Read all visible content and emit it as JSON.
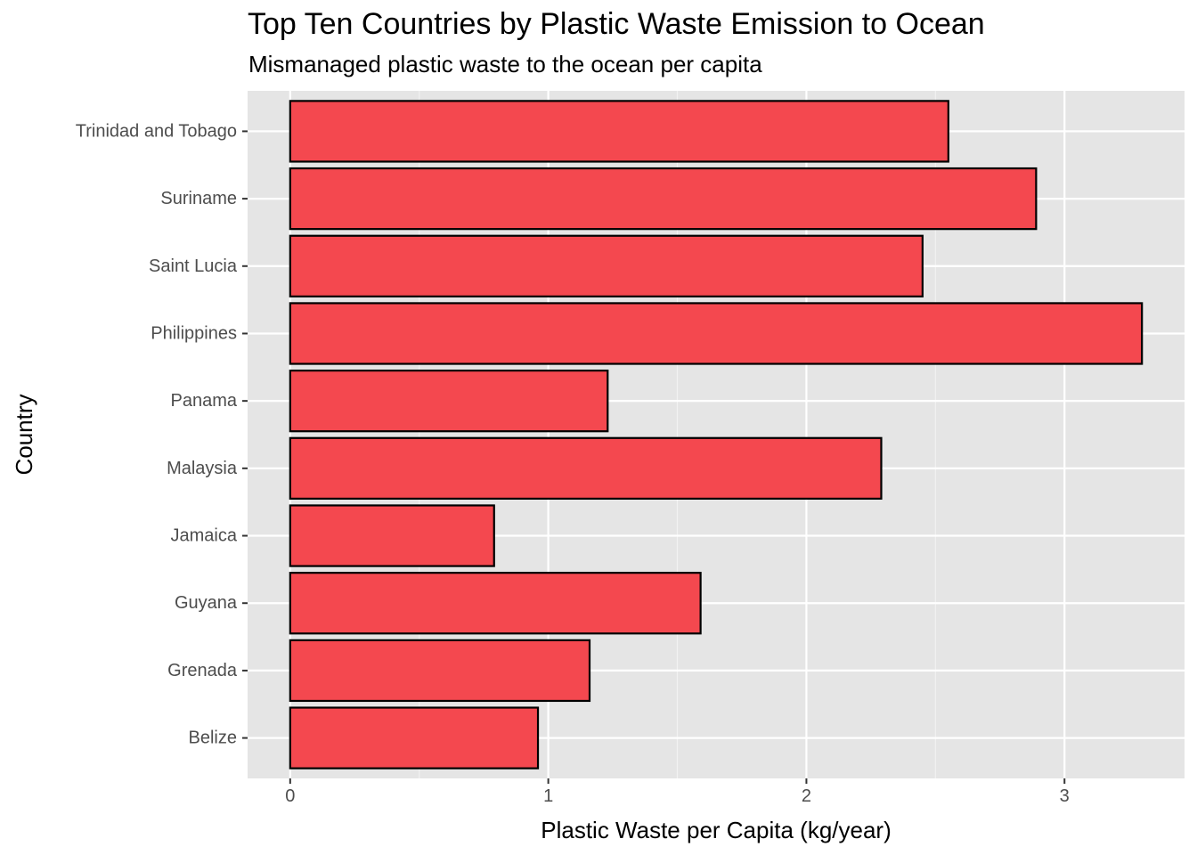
{
  "chart_data": {
    "type": "bar",
    "orientation": "horizontal",
    "title": "Top Ten Countries by Plastic Waste Emission to Ocean",
    "subtitle": "Mismanaged plastic waste to the ocean per capita",
    "xlabel": "Plastic Waste per Capita (kg/year)",
    "ylabel": "Country",
    "categories": [
      "Belize",
      "Grenada",
      "Guyana",
      "Jamaica",
      "Malaysia",
      "Panama",
      "Philippines",
      "Saint Lucia",
      "Suriname",
      "Trinidad and Tobago"
    ],
    "values": [
      0.96,
      1.16,
      1.59,
      0.79,
      2.29,
      1.23,
      3.3,
      2.45,
      2.89,
      2.55
    ],
    "xlim": [
      -0.165,
      3.465
    ],
    "x_ticks": [
      0,
      1,
      2,
      3
    ],
    "x_tick_labels": [
      "0",
      "1",
      "2",
      "3"
    ],
    "grid": true,
    "colors": {
      "bar_fill": "#F4484F",
      "bar_stroke": "#000000",
      "panel_background": "#E5E5E5",
      "grid_major": "#FFFFFF",
      "grid_minor": "#F2F2F2",
      "tick_label": "#4D4D4D",
      "axis_tick": "#333333"
    }
  }
}
